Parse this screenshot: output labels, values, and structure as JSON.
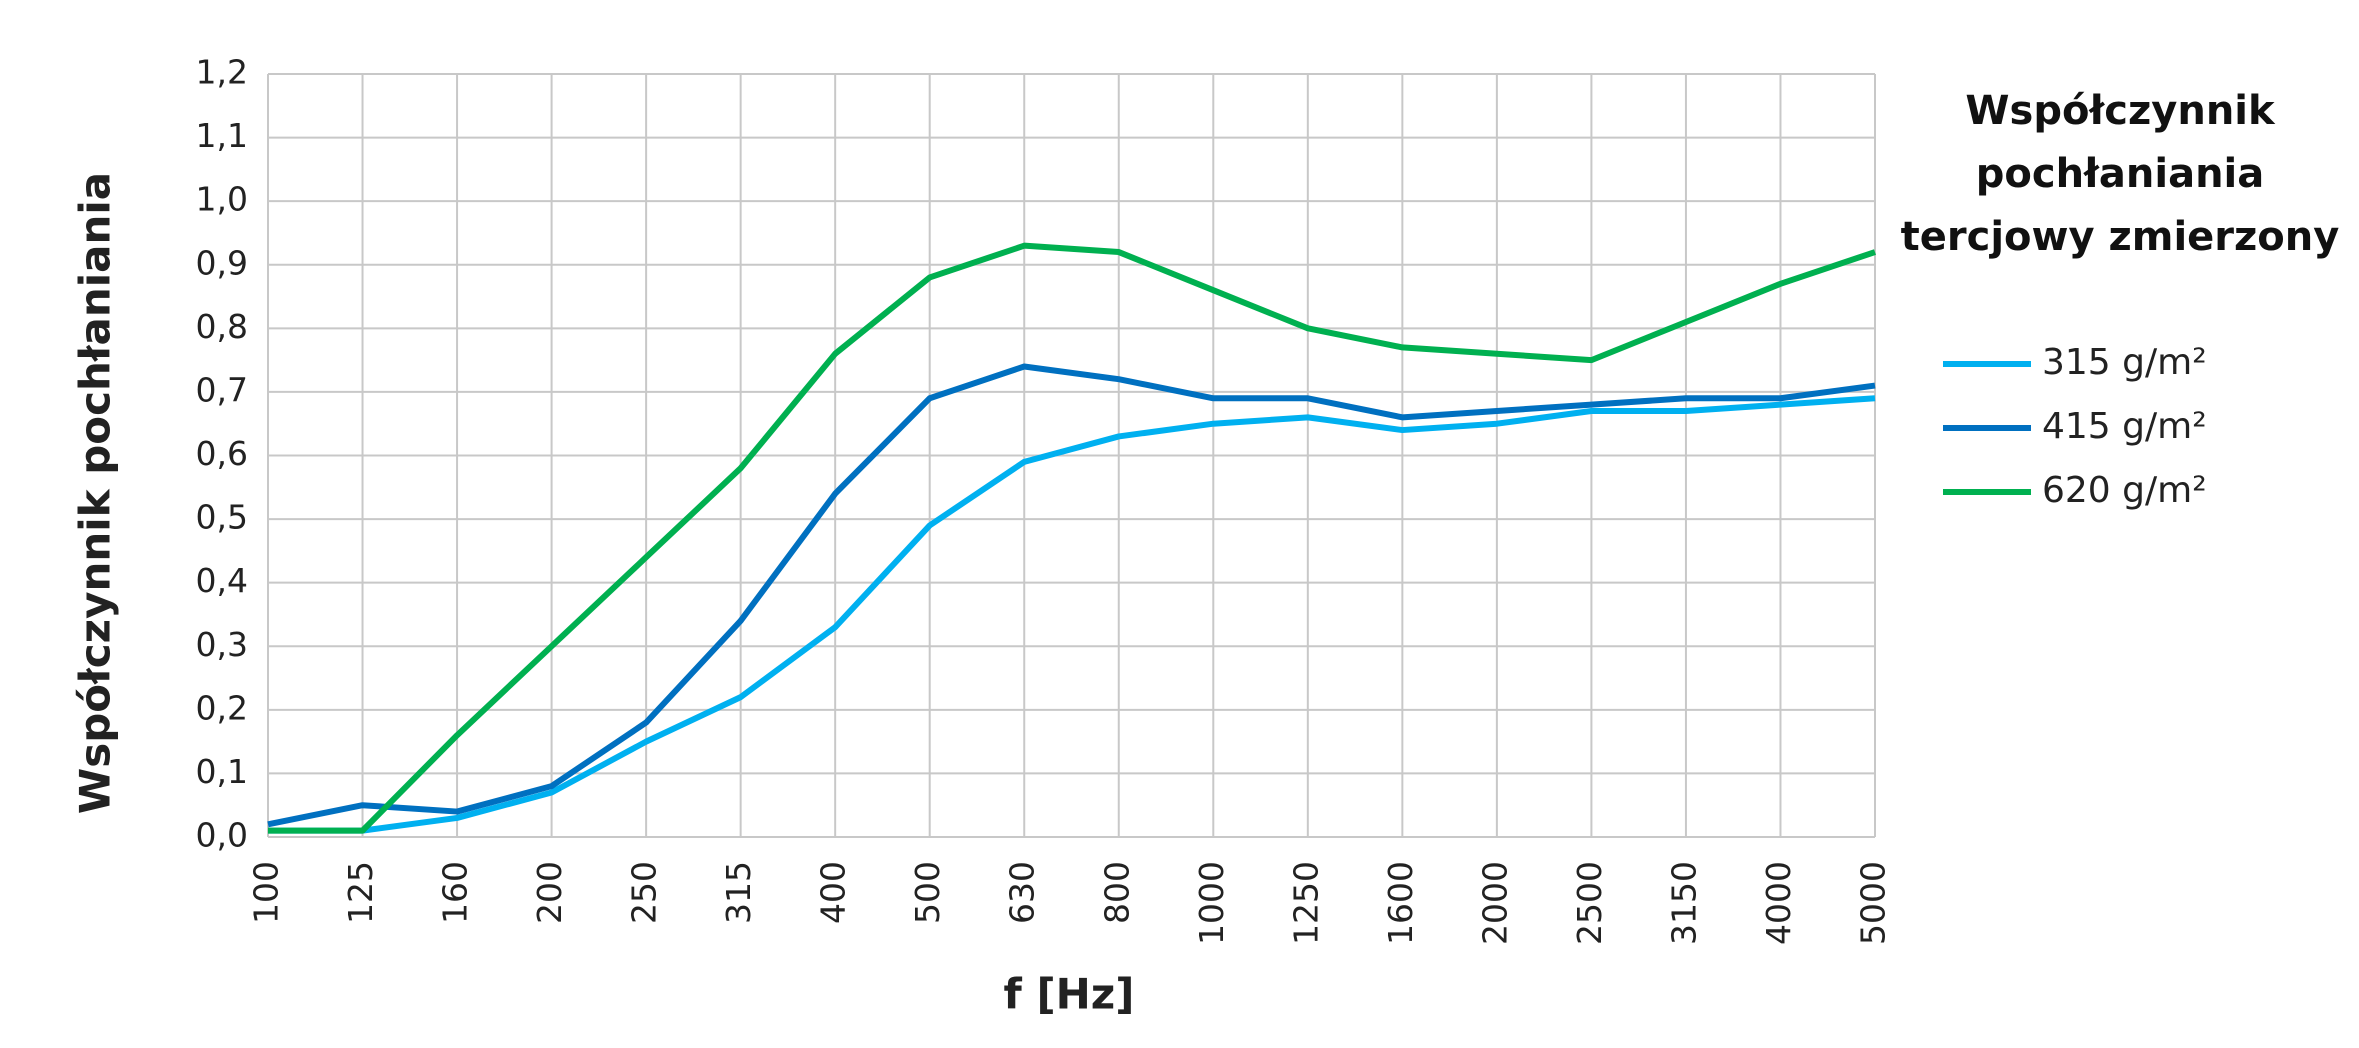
{
  "chart_data": {
    "type": "line",
    "y_label": "Współczynnik pochłaniania",
    "x_label": "f [Hz]",
    "legend_title": "Współczynnik pochłaniania tercjowy zmierzony",
    "legend_position": "right",
    "grid": true,
    "categories": [
      "100",
      "125",
      "160",
      "200",
      "250",
      "315",
      "400",
      "500",
      "630",
      "800",
      "1000",
      "1250",
      "1600",
      "2000",
      "2500",
      "3150",
      "4000",
      "5000"
    ],
    "series": [
      {
        "name": "315 g/m²",
        "color": "#00b0f0",
        "values": [
          0.01,
          0.01,
          0.03,
          0.07,
          0.15,
          0.22,
          0.33,
          0.49,
          0.59,
          0.63,
          0.65,
          0.66,
          0.64,
          0.65,
          0.67,
          0.67,
          0.68,
          0.69
        ]
      },
      {
        "name": "415 g/m²",
        "color": "#0070c0",
        "values": [
          0.02,
          0.05,
          0.04,
          0.08,
          0.18,
          0.34,
          0.54,
          0.69,
          0.74,
          0.72,
          0.69,
          0.69,
          0.66,
          0.67,
          0.68,
          0.69,
          0.69,
          0.71
        ]
      },
      {
        "name": "620 g/m²",
        "color": "#00b050",
        "values": [
          0.01,
          0.01,
          0.16,
          0.3,
          0.44,
          0.58,
          0.76,
          0.88,
          0.93,
          0.92,
          0.86,
          0.8,
          0.77,
          0.76,
          0.75,
          0.81,
          0.87,
          0.92
        ]
      }
    ],
    "ylim": [
      0,
      1.2
    ],
    "yticks": [
      {
        "value": 0,
        "label": "0,0"
      },
      {
        "value": 0.1,
        "label": "0,1"
      },
      {
        "value": 0.2,
        "label": "0,2"
      },
      {
        "value": 0.3,
        "label": "0,3"
      },
      {
        "value": 0.4,
        "label": "0,4"
      },
      {
        "value": 0.5,
        "label": "0,5"
      },
      {
        "value": 0.6,
        "label": "0,6"
      },
      {
        "value": 0.7,
        "label": "0,7"
      },
      {
        "value": 0.8,
        "label": "0,8"
      },
      {
        "value": 0.9,
        "label": "0,9"
      },
      {
        "value": 1.0,
        "label": "1,0"
      },
      {
        "value": 1.1,
        "label": "1,1"
      },
      {
        "value": 1.2,
        "label": "1,2"
      }
    ]
  }
}
